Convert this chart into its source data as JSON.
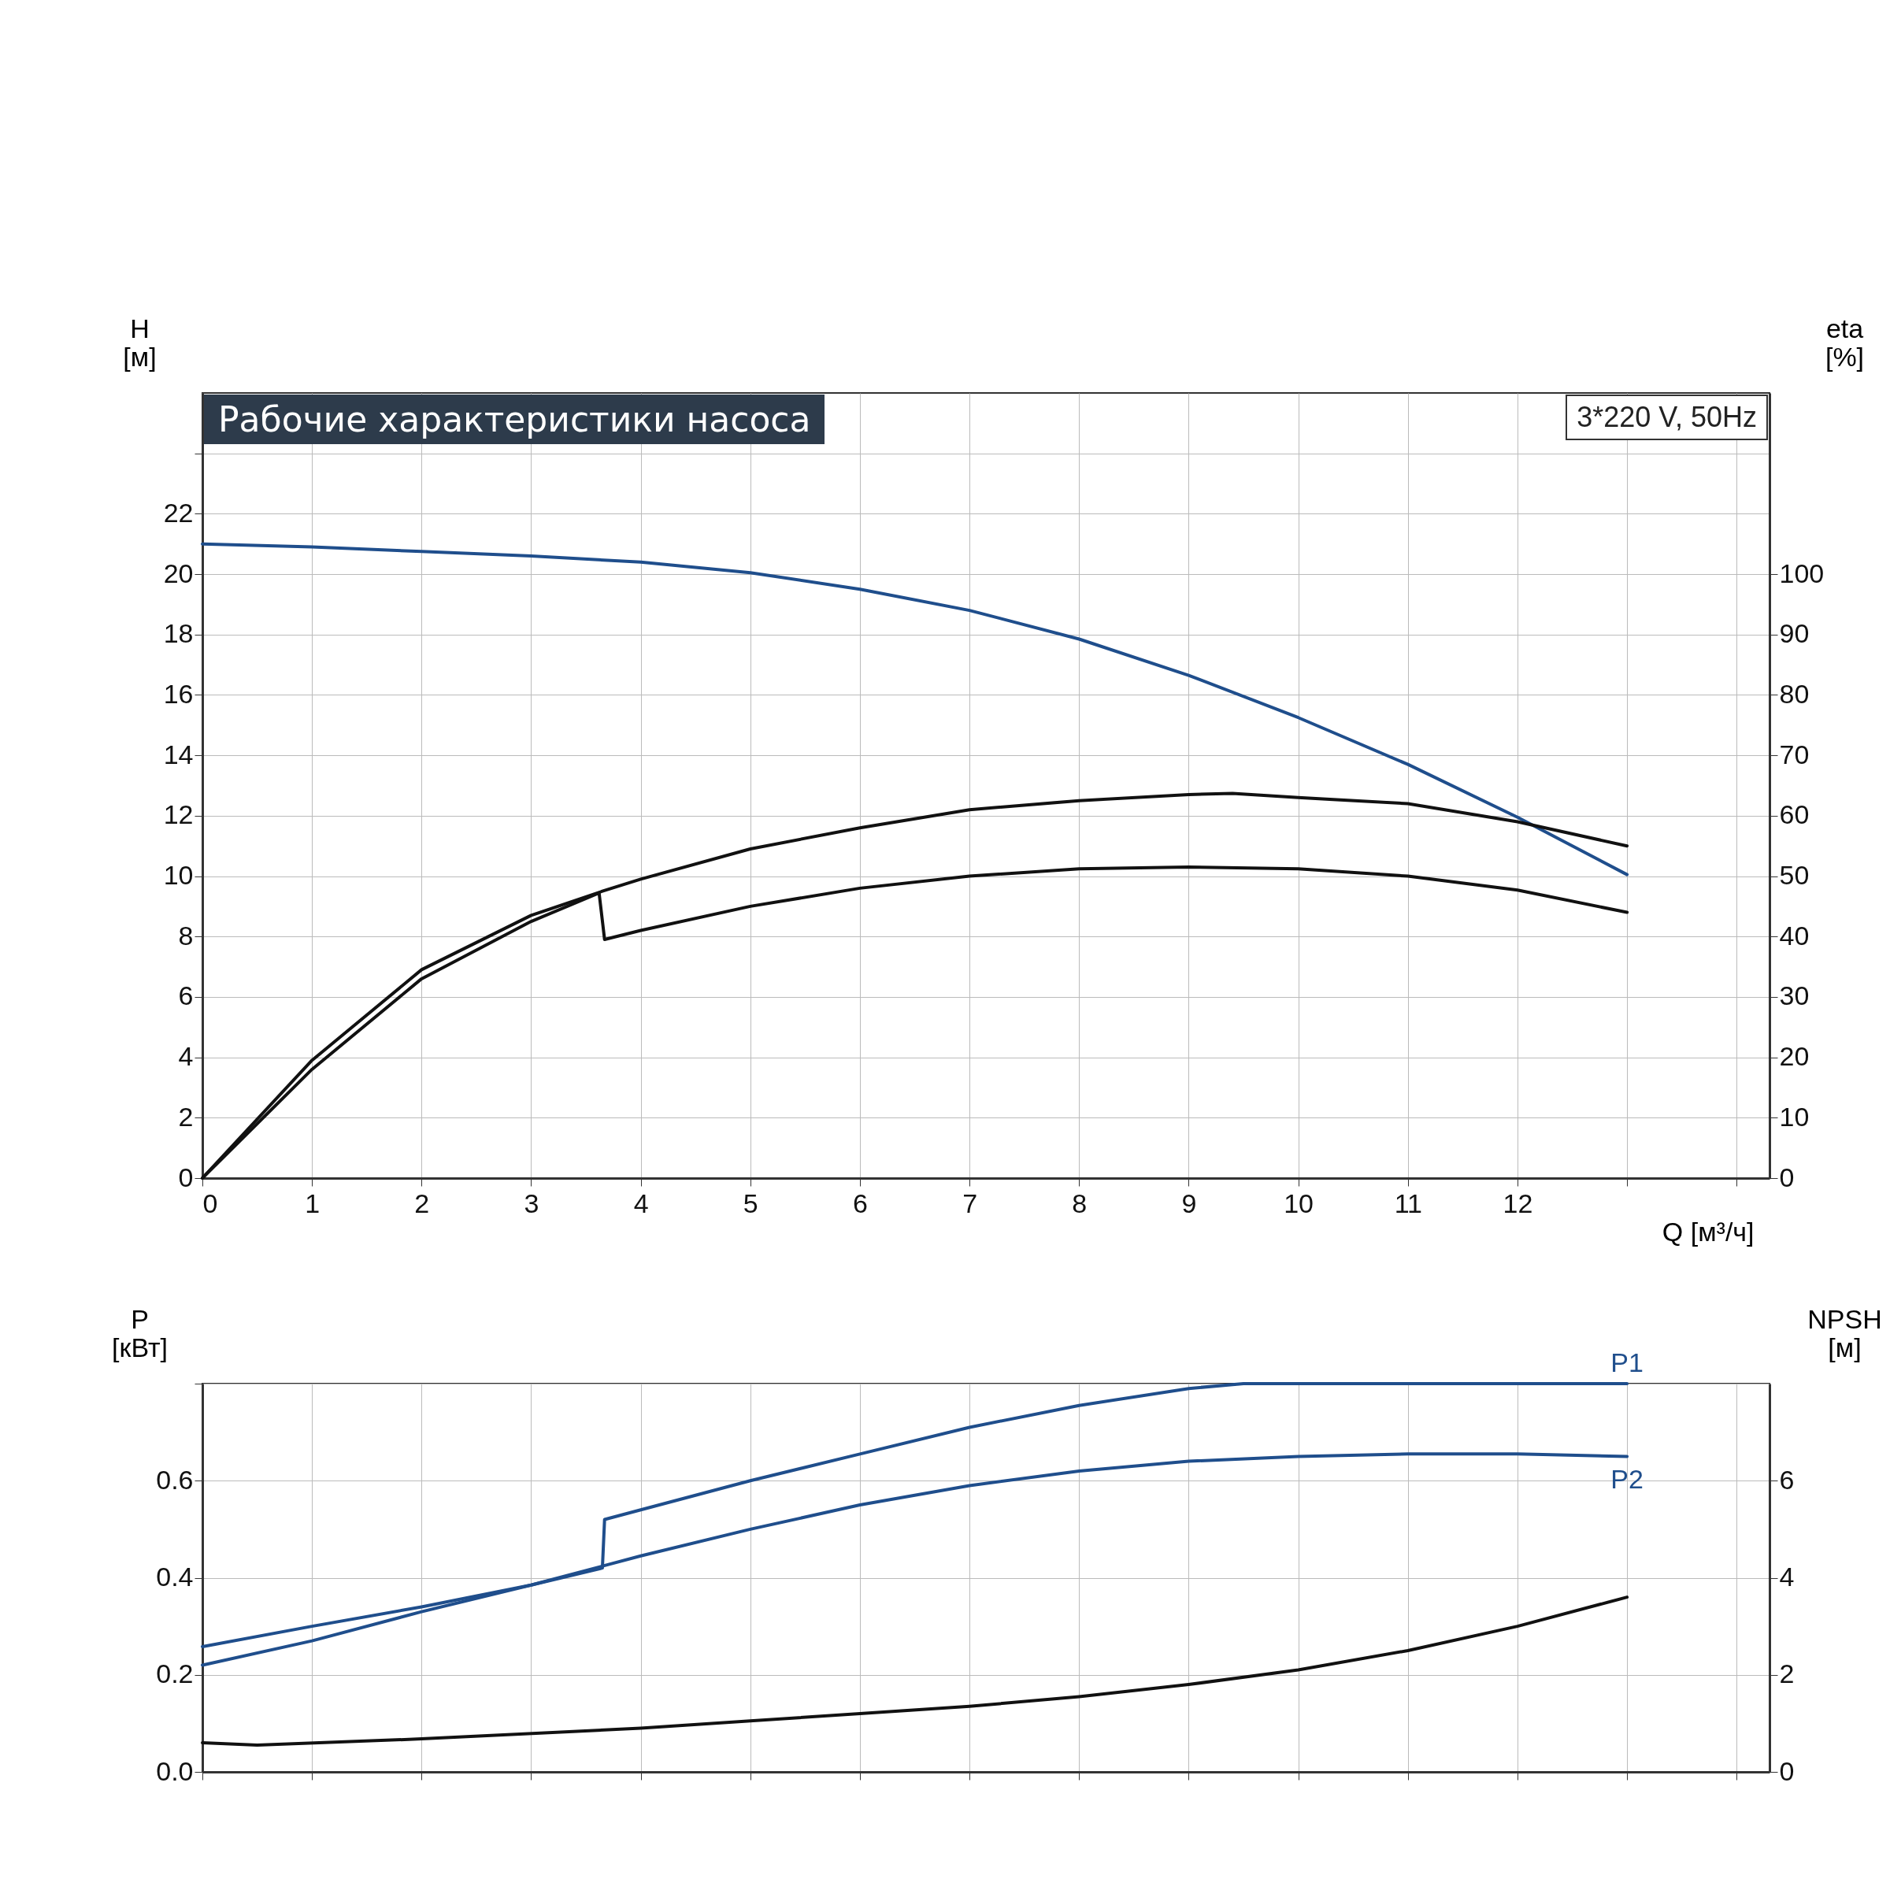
{
  "chart_data": [
    {
      "type": "line",
      "title": "Рабочие характеристики насоса",
      "annotations": [
        "3*220 V, 50Hz"
      ],
      "xlabel": "Q [м³/ч]",
      "ylabel": "H [м]",
      "y2label": "eta [%]",
      "xlim": [
        0,
        14.3
      ],
      "xticks": [
        0,
        1,
        2,
        3,
        4,
        5,
        6,
        7,
        8,
        9,
        10,
        11,
        12,
        {
          "value": 13,
          "label": null
        },
        {
          "value": 14,
          "label": null
        }
      ],
      "ylim": [
        0,
        26
      ],
      "yticks": [
        0,
        2,
        4,
        6,
        8,
        10,
        12,
        14,
        16,
        18,
        20,
        22,
        {
          "value": 24,
          "label": null
        }
      ],
      "y2lim": [
        0,
        130
      ],
      "y2ticks": [
        0,
        10,
        20,
        30,
        40,
        50,
        60,
        70,
        80,
        90,
        100
      ],
      "grid": true,
      "series": [
        {
          "color": "#1f4e8c",
          "x": [
            0,
            1,
            2,
            3,
            4,
            5,
            6,
            7,
            8,
            9,
            10,
            11,
            12,
            13
          ],
          "values": [
            21.0,
            20.9,
            20.75,
            20.6,
            20.4,
            20.05,
            19.5,
            18.8,
            17.85,
            16.65,
            15.25,
            13.7,
            11.95,
            10.05
          ]
        },
        {
          "color": "#111111",
          "axis": "y2",
          "x": [
            0,
            1,
            2,
            3,
            3.65,
            4,
            5,
            6,
            7,
            8,
            9,
            9.4,
            10,
            11,
            12,
            13
          ],
          "values": [
            0,
            19.5,
            34.5,
            43.5,
            47.5,
            49.5,
            54.5,
            58,
            61,
            62.5,
            63.5,
            63.7,
            63,
            62,
            59,
            55
          ]
        },
        {
          "color": "#111111",
          "axis": "y2",
          "x": [
            0,
            1,
            2,
            3,
            3.62,
            3.67,
            4,
            5,
            6,
            7,
            8,
            9,
            10,
            11,
            12,
            13
          ],
          "values": [
            0,
            18,
            33,
            42.5,
            47.2,
            39.5,
            41,
            45,
            48,
            50,
            51.2,
            51.5,
            51.2,
            50,
            47.7,
            44
          ]
        }
      ]
    },
    {
      "type": "line",
      "ylabel": "P [кВт]",
      "y2label": "NPSH [м]",
      "tick_labels": "y",
      "xlim": [
        0,
        14.3
      ],
      "xticks": [
        0,
        1,
        2,
        3,
        4,
        5,
        6,
        7,
        8,
        9,
        10,
        11,
        12,
        13,
        14
      ],
      "ylim": [
        0,
        0.8
      ],
      "yticks": [
        {
          "value": 0,
          "label": "0.0"
        },
        0.2,
        0.4,
        0.6,
        {
          "value": 0.8,
          "label": null
        }
      ],
      "y2lim": [
        0,
        8
      ],
      "y2ticks": [
        0,
        2,
        4,
        6
      ],
      "grid": true,
      "series": [
        {
          "name": "P1",
          "color": "#1f4e8c",
          "x": [
            0,
            1,
            2,
            3,
            3.65,
            3.67,
            4,
            5,
            6,
            7,
            8,
            9,
            9.5,
            13
          ],
          "values": [
            0.258,
            0.3,
            0.34,
            0.385,
            0.42,
            0.52,
            0.54,
            0.6,
            0.655,
            0.71,
            0.755,
            0.79,
            0.8,
            0.8
          ]
        },
        {
          "name": "P2",
          "color": "#1f4e8c",
          "x": [
            0,
            1,
            2,
            3,
            4,
            5,
            6,
            7,
            8,
            9,
            10,
            11,
            12,
            13
          ],
          "values": [
            0.22,
            0.27,
            0.33,
            0.385,
            0.445,
            0.5,
            0.55,
            0.59,
            0.62,
            0.64,
            0.65,
            0.655,
            0.655,
            0.65
          ]
        },
        {
          "color": "#111111",
          "axis": "y2",
          "x": [
            0,
            0.5,
            2,
            4,
            5,
            6,
            7,
            8,
            9,
            10,
            11,
            12,
            13
          ],
          "values": [
            0.6,
            0.55,
            0.68,
            0.9,
            1.05,
            1.2,
            1.35,
            1.55,
            1.8,
            2.1,
            2.5,
            3.0,
            3.6
          ]
        }
      ]
    }
  ]
}
